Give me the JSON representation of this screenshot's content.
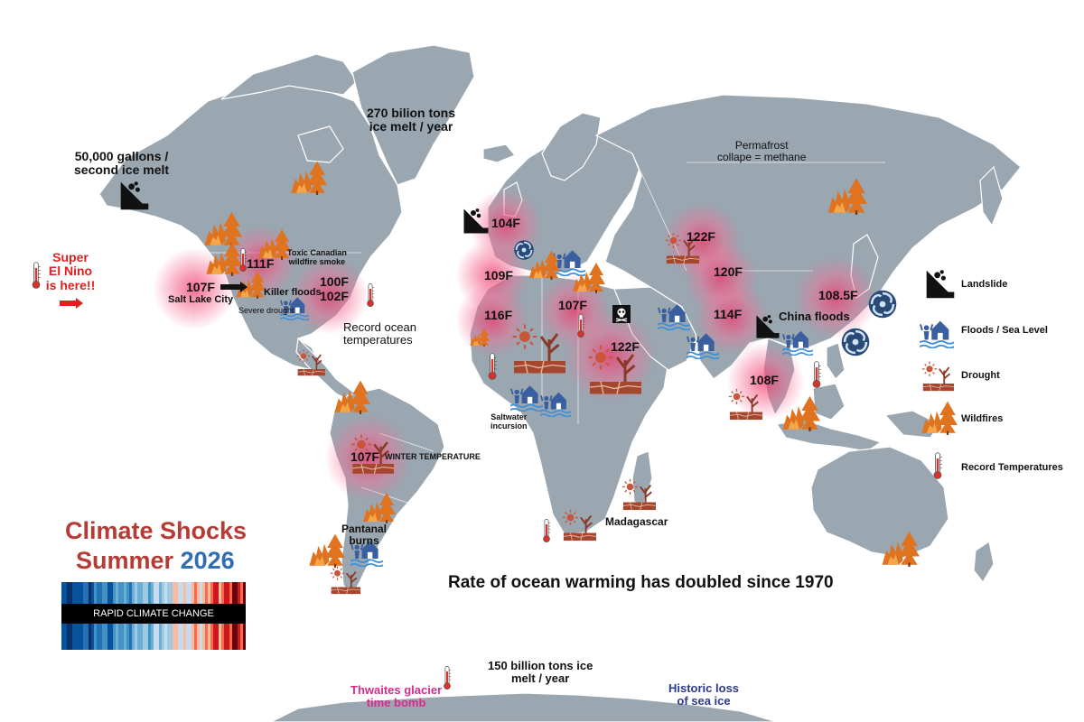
{
  "title": {
    "line1": "Climate Shocks",
    "line2_prefix": "Summer",
    "line2_year": "2026",
    "stripes_label": "RAPID CLIMATE CHANGE",
    "stripe_colors": [
      "#08306b",
      "#08519c",
      "#2171b5",
      "#4292c6",
      "#6baed6",
      "#9ecae1",
      "#c6dbef",
      "#fcbba1",
      "#fb6a4a",
      "#cb181d",
      "#67000d"
    ]
  },
  "headline": "Rate of ocean warming has doubled since 1970",
  "el_nino": "Super\nEl Nino\nis here!!",
  "annotations": {
    "alaska": "50,000 gallons /\nsecond ice melt",
    "greenland": "270 bilion tons\nice melt / year",
    "permafrost": "Permafrost\ncollape = methane",
    "toxic_smoke": "Toxic Canadian\nwildfire smoke",
    "killer_floods": "Killer floods",
    "severe_drought": "Severe drought",
    "salt_lake": "Salt Lake City",
    "ocean_temps": "Record ocean\ntemperatures",
    "winter_temp": "WINTER TEMPERATURE",
    "pantanal": "Pantanal\nburns",
    "saltwater": "Saltwater\nincursion",
    "madagascar": "Madagascar",
    "china_floods": "China floods",
    "antarctic_melt": "150 billion tons ice\nmelt / year",
    "thwaites": "Thwaites glacier\ntime bomb",
    "sea_ice": "Historic loss\nof sea ice"
  },
  "temperatures": [
    "107F",
    "111F",
    "100F",
    "102F",
    "104F",
    "109F",
    "116F",
    "107F",
    "122F",
    "122F",
    "120F",
    "114F",
    "108.5F",
    "108F",
    "107F"
  ],
  "legend": {
    "landslide": "Landslide",
    "floods": "Floods / Sea Level",
    "drought": "Drought",
    "wildfires": "Wildfires",
    "record_temps": "Record Temperatures"
  },
  "colors": {
    "land": "#9aa6b0",
    "title_red": "#b73a34",
    "year_blue": "#2f6db5",
    "el_nino_red": "#e02020",
    "thwaites_pink": "#d62b8c",
    "sea_ice_blue": "#2b3a8c",
    "fire_orange": "#e0731f",
    "flood_blue": "#3a5fa0",
    "drought_brown": "#a5472f"
  }
}
